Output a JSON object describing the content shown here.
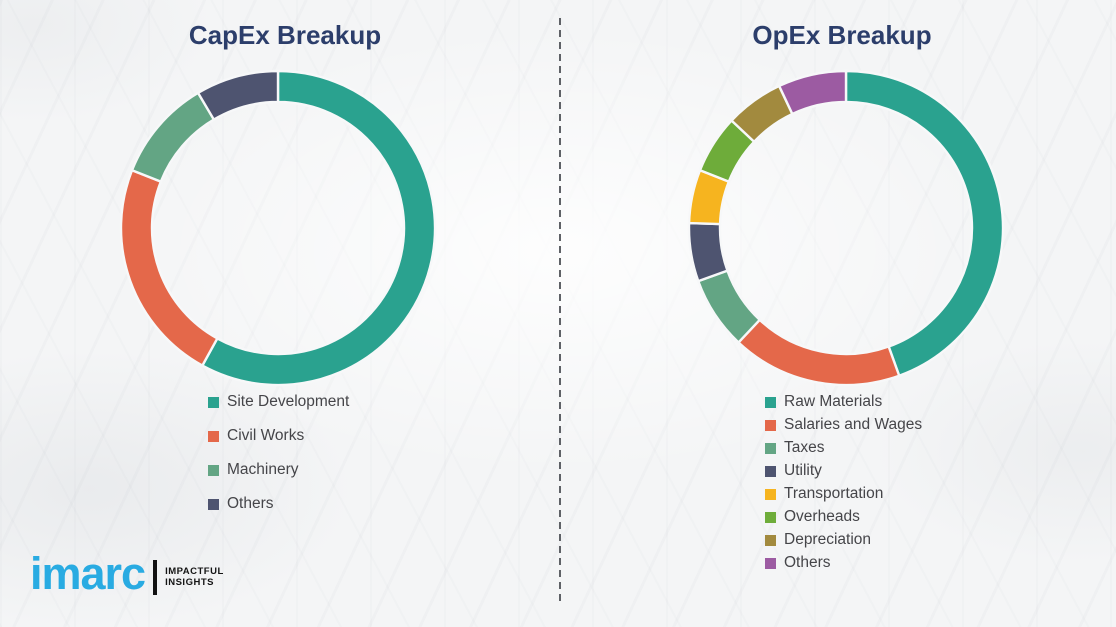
{
  "page": {
    "background_color": "#f4f5f6",
    "separator_color": "#5e6166",
    "slice_gap_color": "#f7f8f9",
    "title_color": "#2c3e6b",
    "legend_text_color": "#454549"
  },
  "chart_data": [
    {
      "type": "pie",
      "subtype": "donut",
      "title": "CapEx Breakup",
      "categories": [
        "Site Development",
        "Civil Works",
        "Machinery",
        "Others"
      ],
      "values": [
        58,
        23,
        10.5,
        8.5
      ],
      "unit": "percent-estimated-from-arc-angles",
      "colors": [
        "#2AA28F",
        "#E4684A",
        "#63A584",
        "#4E5470"
      ],
      "start_angle_deg": 0,
      "direction": "clockwise",
      "donut_outer_radius": 157,
      "donut_inner_radius": 126,
      "data_labels": "none",
      "legend_position": "below-chart-left"
    },
    {
      "type": "pie",
      "subtype": "donut",
      "title": "OpEx Breakup",
      "categories": [
        "Raw Materials",
        "Salaries and Wages",
        "Taxes",
        "Utility",
        "Transportation",
        "Overheads",
        "Depreciation",
        "Others"
      ],
      "values": [
        44.5,
        17.5,
        7.5,
        6,
        5.5,
        6,
        6,
        7
      ],
      "unit": "percent-estimated-from-arc-angles",
      "colors": [
        "#2AA28F",
        "#E4684A",
        "#63A584",
        "#4E5470",
        "#F6B41F",
        "#6EAC3A",
        "#A28A3E",
        "#9C5BA2"
      ],
      "start_angle_deg": 0,
      "direction": "clockwise",
      "donut_outer_radius": 157,
      "donut_inner_radius": 126,
      "data_labels": "none",
      "legend_position": "below-chart-left"
    }
  ],
  "logo": {
    "wordmark": "imarc",
    "tagline_line1": "IMPACTFUL",
    "tagline_line2": "INSIGHTS",
    "wordmark_color": "#29abe2",
    "tagline_color": "#141414"
  }
}
